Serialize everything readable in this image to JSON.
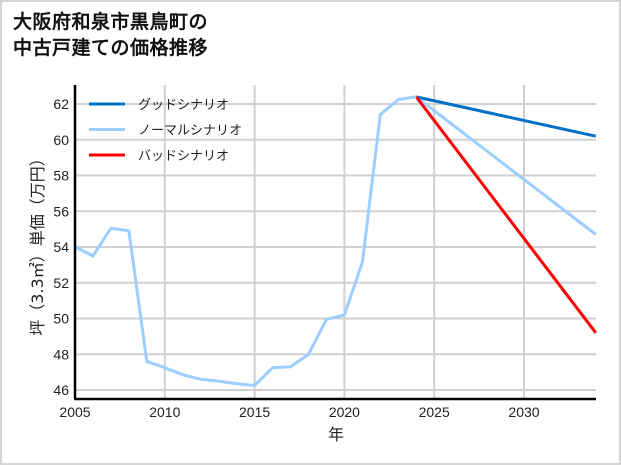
{
  "title": {
    "line1": "大阪府和泉市黒鳥町の",
    "line2": "中古戸建ての価格推移"
  },
  "colors": {
    "good": "#0070c8",
    "normal": "#9ccfff",
    "bad": "#ff0000",
    "grid": "#d0d0d0",
    "axis": "#000000"
  },
  "chart_data": {
    "type": "line",
    "title": "大阪府和泉市黒鳥町の中古戸建ての価格推移",
    "xlabel": "年",
    "ylabel": "坪（3.3㎡）単価（万円）",
    "xlim": [
      2005,
      2034
    ],
    "ylim": [
      45.5,
      63.1
    ],
    "x_ticks": [
      2005,
      2010,
      2015,
      2020,
      2025,
      2030
    ],
    "y_ticks": [
      46,
      48,
      50,
      52,
      54,
      56,
      58,
      60,
      62
    ],
    "grid": true,
    "legend_position": "upper left",
    "series": [
      {
        "name": "ノーマルシナリオ",
        "role": "historical",
        "color": "#9ccfff",
        "x": [
          2005,
          2006,
          2007,
          2008,
          2009,
          2010,
          2011,
          2012,
          2013,
          2014,
          2015,
          2016,
          2017,
          2018,
          2019,
          2020,
          2021,
          2022,
          2023,
          2024
        ],
        "values": [
          54.0,
          53.5,
          55.05,
          54.9,
          47.6,
          47.25,
          46.85,
          46.6,
          46.5,
          46.35,
          46.25,
          47.25,
          47.3,
          48.0,
          49.95,
          50.2,
          53.15,
          61.4,
          62.25,
          62.4
        ]
      },
      {
        "name": "グッドシナリオ",
        "color": "#0070c8",
        "x": [
          2024,
          2034
        ],
        "values": [
          62.4,
          60.2
        ]
      },
      {
        "name": "ノーマルシナリオ",
        "color": "#9ccfff",
        "x": [
          2024,
          2034
        ],
        "values": [
          62.4,
          54.7
        ]
      },
      {
        "name": "バッドシナリオ",
        "color": "#ff0000",
        "x": [
          2024,
          2034
        ],
        "values": [
          62.4,
          49.2
        ]
      }
    ],
    "legend": [
      "グッドシナリオ",
      "ノーマルシナリオ",
      "バッドシナリオ"
    ]
  }
}
